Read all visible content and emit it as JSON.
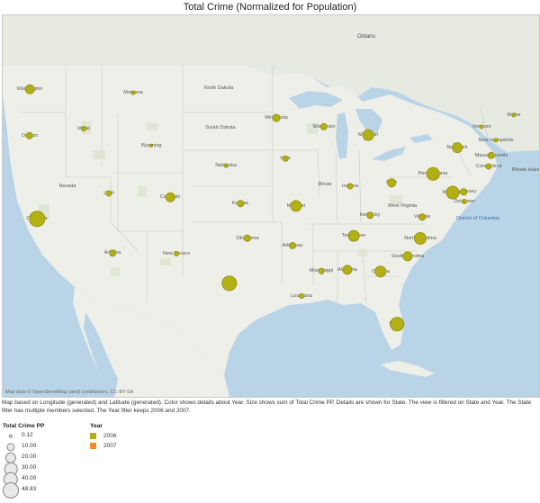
{
  "title": "Total Crime (Normalized for Population)",
  "map": {
    "country_labels": [
      "Ontario"
    ],
    "region_labels": [
      "District of Columbia",
      "Rhode Island"
    ],
    "state_labels": [
      "Washington",
      "Oregon",
      "Idaho",
      "Montana",
      "Wyoming",
      "Nevada",
      "Utah",
      "Colorado",
      "California",
      "Arizona",
      "New Mexico",
      "North Dakota",
      "South Dakota",
      "Nebraska",
      "Kansas",
      "Oklahoma",
      "Texas",
      "Minnesota",
      "Iowa",
      "Missouri",
      "Arkansas",
      "Louisiana",
      "Wisconsin",
      "Illinois",
      "Michigan",
      "Indiana",
      "Ohio",
      "Kentucky",
      "Tennessee",
      "Mississippi",
      "Alabama",
      "Georgia",
      "Florida",
      "South Carolina",
      "North Carolina",
      "Virginia",
      "West Virginia",
      "Pennsylvania",
      "New York",
      "Vermont",
      "New Hampshire",
      "Maine",
      "Massachusetts",
      "Connecticut",
      "New Jersey",
      "Maryland",
      "Delaware"
    ],
    "attribution": "Map data © OpenStreetMap (and) contributors, CC-BY-SA",
    "marks": [
      {
        "state": "Washington",
        "year": "2006",
        "value": 14
      },
      {
        "state": "Oregon",
        "year": "2006",
        "value": 8
      },
      {
        "state": "Idaho",
        "year": "2006",
        "value": 3
      },
      {
        "state": "Montana",
        "year": "2006",
        "value": 1.5
      },
      {
        "state": "Wyoming",
        "year": "2006",
        "value": 1
      },
      {
        "state": "Utah",
        "year": "2006",
        "value": 5
      },
      {
        "state": "Colorado",
        "year": "2006",
        "value": 14
      },
      {
        "state": "California",
        "year": "2006",
        "value": 46
      },
      {
        "state": "Arizona",
        "year": "2006",
        "value": 6
      },
      {
        "state": "New Mexico",
        "year": "2006",
        "value": 3
      },
      {
        "state": "Nebraska",
        "year": "2006",
        "value": 1.5
      },
      {
        "state": "Kansas",
        "year": "2006",
        "value": 6
      },
      {
        "state": "Oklahoma",
        "year": "2006",
        "value": 8
      },
      {
        "state": "Texas",
        "year": "2006",
        "value": 45
      },
      {
        "state": "Minnesota",
        "year": "2006",
        "value": 9
      },
      {
        "state": "Iowa",
        "year": "2006",
        "value": 4
      },
      {
        "state": "Missouri",
        "year": "2006",
        "value": 24
      },
      {
        "state": "Arkansas",
        "year": "2006",
        "value": 7
      },
      {
        "state": "Louisiana",
        "year": "2006",
        "value": 3
      },
      {
        "state": "Wisconsin",
        "year": "2006",
        "value": 8
      },
      {
        "state": "Michigan",
        "year": "2006",
        "value": 22
      },
      {
        "state": "Indiana",
        "year": "2006",
        "value": 5
      },
      {
        "state": "Ohio",
        "year": "2006",
        "value": 11
      },
      {
        "state": "Kentucky",
        "year": "2006",
        "value": 6
      },
      {
        "state": "Tennessee",
        "year": "2006",
        "value": 22
      },
      {
        "state": "Mississippi",
        "year": "2006",
        "value": 4
      },
      {
        "state": "Alabama",
        "year": "2006",
        "value": 16
      },
      {
        "state": "Georgia",
        "year": "2006",
        "value": 25
      },
      {
        "state": "Florida",
        "year": "2006",
        "value": 35
      },
      {
        "state": "South Carolina",
        "year": "2006",
        "value": 16
      },
      {
        "state": "North Carolina",
        "year": "2006",
        "value": 28
      },
      {
        "state": "Virginia",
        "year": "2006",
        "value": 6
      },
      {
        "state": "Pennsylvania",
        "year": "2006",
        "value": 30
      },
      {
        "state": "New York",
        "year": "2006",
        "value": 18
      },
      {
        "state": "Maryland",
        "year": "2006",
        "value": 32
      },
      {
        "state": "New Jersey",
        "year": "2006",
        "value": 6
      },
      {
        "state": "Delaware",
        "year": "2006",
        "value": 3
      },
      {
        "state": "Massachusetts",
        "year": "2006",
        "value": 8
      },
      {
        "state": "Connecticut",
        "year": "2006",
        "value": 5
      },
      {
        "state": "Vermont",
        "year": "2006",
        "value": 2
      },
      {
        "state": "New Hampshire",
        "year": "2006",
        "value": 2
      },
      {
        "state": "Maine",
        "year": "2006",
        "value": 2
      }
    ]
  },
  "caption": "Map based on Longitude (generated) and Latitude (generated). Color shows details about Year. Size shows sum of Total Crime PP. Details are shown for State. The view is filtered on State and Year. The State filter has multiple members selected. The Year filter keeps 2006 and 2007.",
  "legend_size": {
    "title": "Total Crime PP",
    "items": [
      {
        "label": "0.12",
        "value": 0.12
      },
      {
        "label": "10.00",
        "value": 10
      },
      {
        "label": "20.00",
        "value": 20
      },
      {
        "label": "30.00",
        "value": 30
      },
      {
        "label": "40.00",
        "value": 40
      },
      {
        "label": "48.83",
        "value": 48.83
      }
    ]
  },
  "legend_year": {
    "title": "Year",
    "items": [
      {
        "label": "2006",
        "color": "#b3b016"
      },
      {
        "label": "2007",
        "color": "#f28e2b"
      }
    ]
  }
}
